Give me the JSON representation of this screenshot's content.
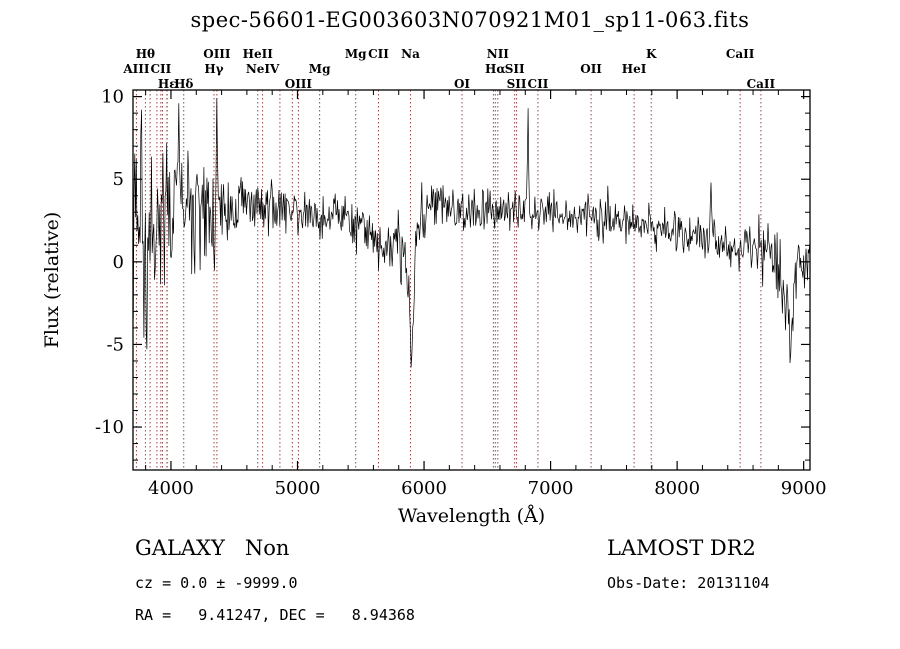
{
  "annotations": {
    "class_label": "GALAXY   Non",
    "survey": "LAMOST DR2",
    "cz_line": "cz = 0.0 ± -9999.0",
    "obs_date": "Obs-Date: 20131104",
    "ra_dec": "RA =   9.41247, DEC =   8.94368"
  },
  "chart_data": {
    "type": "line",
    "title": "spec-56601-EG003603N070921M01_sp11-063.fits",
    "xlabel": "Wavelength (Å)",
    "ylabel": "Flux (relative)",
    "xlim": [
      3700,
      9050
    ],
    "ylim": [
      -12.6,
      10.4
    ],
    "x_major_ticks": [
      4000,
      5000,
      6000,
      7000,
      8000,
      9000
    ],
    "y_major_ticks": [
      -10,
      -5,
      0,
      5,
      10
    ],
    "x_minor_step": 200,
    "y_minor_step": 1,
    "grid": false,
    "line_color": "#000000",
    "marker_line_color": "#9b4545",
    "spectrum_envelope": [
      [
        3700,
        1.5
      ],
      [
        3760,
        2.2
      ],
      [
        3820,
        2.6
      ],
      [
        3900,
        2.8
      ],
      [
        4000,
        3.0
      ],
      [
        4150,
        3.1
      ],
      [
        4300,
        3.2
      ],
      [
        4500,
        3.3
      ],
      [
        4700,
        3.4
      ],
      [
        4850,
        3.4
      ],
      [
        5000,
        3.1
      ],
      [
        5100,
        2.8
      ],
      [
        5200,
        2.7
      ],
      [
        5320,
        2.9
      ],
      [
        5420,
        2.5
      ],
      [
        5520,
        2.0
      ],
      [
        5620,
        1.5
      ],
      [
        5720,
        1.2
      ],
      [
        5800,
        1.4
      ],
      [
        5860,
        0.4
      ],
      [
        5885,
        -3.5
      ],
      [
        5900,
        -6.8
      ],
      [
        5915,
        -3.5
      ],
      [
        5935,
        0.5
      ],
      [
        5970,
        2.2
      ],
      [
        6010,
        3.2
      ],
      [
        6060,
        3.8
      ],
      [
        6120,
        3.4
      ],
      [
        6220,
        3.1
      ],
      [
        6320,
        3.0
      ],
      [
        6420,
        3.2
      ],
      [
        6520,
        3.0
      ],
      [
        6620,
        2.9
      ],
      [
        6720,
        3.0
      ],
      [
        6800,
        3.1
      ],
      [
        6860,
        3.0
      ],
      [
        6950,
        2.9
      ],
      [
        7050,
        2.9
      ],
      [
        7150,
        2.8
      ],
      [
        7250,
        2.7
      ],
      [
        7350,
        2.6
      ],
      [
        7450,
        2.6
      ],
      [
        7550,
        2.5
      ],
      [
        7600,
        2.1
      ],
      [
        7700,
        2.3
      ],
      [
        7800,
        2.2
      ],
      [
        7900,
        2.0
      ],
      [
        8000,
        1.8
      ],
      [
        8100,
        1.7
      ],
      [
        8200,
        1.5
      ],
      [
        8300,
        1.4
      ],
      [
        8400,
        1.2
      ],
      [
        8500,
        1.0
      ],
      [
        8600,
        0.7
      ],
      [
        8700,
        0.4
      ],
      [
        8780,
        0.1
      ],
      [
        8840,
        -1.5
      ],
      [
        8890,
        -4.6
      ],
      [
        8930,
        -2.0
      ],
      [
        8970,
        -0.3
      ],
      [
        9010,
        0.2
      ],
      [
        9050,
        0.6
      ]
    ],
    "noise_profile": [
      [
        3700,
        3.6
      ],
      [
        3780,
        3.4
      ],
      [
        3880,
        3.0
      ],
      [
        3980,
        2.7
      ],
      [
        4080,
        2.4
      ],
      [
        4200,
        2.0
      ],
      [
        4350,
        1.6
      ],
      [
        4500,
        1.1
      ],
      [
        4700,
        0.85
      ],
      [
        4900,
        0.75
      ],
      [
        5100,
        0.7
      ],
      [
        5300,
        0.7
      ],
      [
        5500,
        0.75
      ],
      [
        5700,
        0.8
      ],
      [
        5880,
        1.2
      ],
      [
        5960,
        0.9
      ],
      [
        6100,
        0.7
      ],
      [
        6300,
        0.65
      ],
      [
        6600,
        0.6
      ],
      [
        6900,
        0.6
      ],
      [
        7200,
        0.6
      ],
      [
        7500,
        0.6
      ],
      [
        7800,
        0.65
      ],
      [
        8100,
        0.7
      ],
      [
        8400,
        0.75
      ],
      [
        8650,
        0.85
      ],
      [
        8850,
        1.3
      ],
      [
        9050,
        0.9
      ]
    ],
    "spikes": [
      [
        3788,
        -4.6
      ],
      [
        4062,
        9.6
      ],
      [
        4360,
        9.9
      ],
      [
        6820,
        9.3
      ],
      [
        7450,
        4.6
      ],
      [
        8270,
        4.8
      ],
      [
        8900,
        -5.5
      ]
    ],
    "line_markers": [
      {
        "label": "Hθ",
        "wavelength": 3798,
        "row": 1
      },
      {
        "label": "OIII",
        "wavelength": 4363,
        "row": 1
      },
      {
        "label": "HeII",
        "wavelength": 4686,
        "row": 1
      },
      {
        "label": "Mg",
        "wavelength": 5460,
        "row": 1
      },
      {
        "label": "CII",
        "wavelength": 5640,
        "row": 1
      },
      {
        "label": "Na",
        "wavelength": 5893,
        "row": 1
      },
      {
        "label": "NII",
        "wavelength": 6583,
        "row": 1
      },
      {
        "label": "K",
        "wavelength": 7795,
        "row": 1
      },
      {
        "label": "CaII",
        "wavelength": 8498,
        "row": 1
      },
      {
        "label": "AIII",
        "wavelength": 3727,
        "row": 2
      },
      {
        "label": "CII",
        "wavelength": 3920,
        "row": 2
      },
      {
        "label": "Hγ",
        "wavelength": 4340,
        "row": 2
      },
      {
        "label": "NeIV",
        "wavelength": 4724,
        "row": 2
      },
      {
        "label": "Mg",
        "wavelength": 5175,
        "row": 2
      },
      {
        "label": "Hα",
        "wavelength": 6563,
        "row": 2
      },
      {
        "label": "SII",
        "wavelength": 6716,
        "row": 2
      },
      {
        "label": "OII",
        "wavelength": 7320,
        "row": 2
      },
      {
        "label": "HeI",
        "wavelength": 7660,
        "row": 2
      },
      {
        "label": "Hε",
        "wavelength": 3970,
        "row": 3
      },
      {
        "label": "Hδ",
        "wavelength": 4101,
        "row": 3
      },
      {
        "label": "OIII",
        "wavelength": 5007,
        "row": 3
      },
      {
        "label": "OI",
        "wavelength": 6300,
        "row": 3
      },
      {
        "label": "SII",
        "wavelength": 6731,
        "row": 3
      },
      {
        "label": "CII",
        "wavelength": 6900,
        "row": 3
      },
      {
        "label": "CaII",
        "wavelength": 8662,
        "row": 3
      }
    ],
    "unlabeled_lines": [
      3835,
      3889,
      3933,
      3968,
      4861,
      4959,
      6548
    ]
  }
}
